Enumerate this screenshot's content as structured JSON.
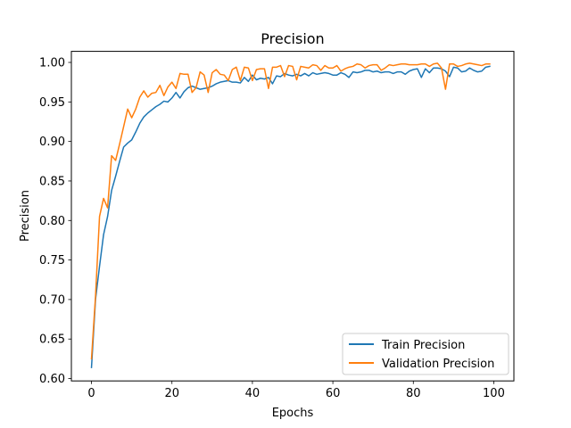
{
  "chart_data": {
    "type": "line",
    "title": "Precision",
    "xlabel": "Epochs",
    "ylabel": "Precision",
    "xlim": [
      -5,
      105
    ],
    "ylim": [
      0.597,
      1.014
    ],
    "xticks": [
      0,
      20,
      40,
      60,
      80,
      100
    ],
    "yticks": [
      0.6,
      0.65,
      0.7,
      0.75,
      0.8,
      0.85,
      0.9,
      0.95,
      1.0
    ],
    "grid": false,
    "legend": "lower-right",
    "x": [
      0,
      1,
      2,
      3,
      4,
      5,
      6,
      7,
      8,
      9,
      10,
      11,
      12,
      13,
      14,
      15,
      16,
      17,
      18,
      19,
      20,
      21,
      22,
      23,
      24,
      25,
      26,
      27,
      28,
      29,
      30,
      31,
      32,
      33,
      34,
      35,
      36,
      37,
      38,
      39,
      40,
      41,
      42,
      43,
      44,
      45,
      46,
      47,
      48,
      49,
      50,
      51,
      52,
      53,
      54,
      55,
      56,
      57,
      58,
      59,
      60,
      61,
      62,
      63,
      64,
      65,
      66,
      67,
      68,
      69,
      70,
      71,
      72,
      73,
      74,
      75,
      76,
      77,
      78,
      79,
      80,
      81,
      82,
      83,
      84,
      85,
      86,
      87,
      88,
      89,
      90,
      91,
      92,
      93,
      94,
      95,
      96,
      97,
      98,
      99
    ],
    "series": [
      {
        "name": "Train Precision",
        "color": "#1f77b4",
        "values": [
          0.614,
          0.7,
          0.742,
          0.782,
          0.805,
          0.838,
          0.856,
          0.875,
          0.893,
          0.898,
          0.902,
          0.912,
          0.923,
          0.931,
          0.936,
          0.94,
          0.944,
          0.947,
          0.951,
          0.95,
          0.955,
          0.962,
          0.955,
          0.963,
          0.968,
          0.97,
          0.968,
          0.966,
          0.967,
          0.968,
          0.97,
          0.973,
          0.975,
          0.976,
          0.977,
          0.975,
          0.975,
          0.974,
          0.981,
          0.976,
          0.984,
          0.978,
          0.98,
          0.979,
          0.981,
          0.973,
          0.983,
          0.982,
          0.986,
          0.984,
          0.983,
          0.985,
          0.983,
          0.986,
          0.983,
          0.987,
          0.985,
          0.986,
          0.987,
          0.986,
          0.984,
          0.984,
          0.987,
          0.985,
          0.981,
          0.988,
          0.987,
          0.988,
          0.99,
          0.99,
          0.988,
          0.989,
          0.987,
          0.988,
          0.988,
          0.986,
          0.988,
          0.988,
          0.985,
          0.989,
          0.991,
          0.992,
          0.981,
          0.992,
          0.987,
          0.993,
          0.993,
          0.992,
          0.989,
          0.982,
          0.994,
          0.993,
          0.988,
          0.989,
          0.993,
          0.99,
          0.988,
          0.989,
          0.994,
          0.995
        ]
      },
      {
        "name": "Validation Precision",
        "color": "#ff7f0e",
        "values": [
          0.625,
          0.704,
          0.805,
          0.828,
          0.816,
          0.882,
          0.876,
          0.897,
          0.919,
          0.941,
          0.93,
          0.941,
          0.956,
          0.964,
          0.956,
          0.961,
          0.962,
          0.971,
          0.958,
          0.969,
          0.975,
          0.967,
          0.986,
          0.985,
          0.985,
          0.962,
          0.968,
          0.988,
          0.984,
          0.962,
          0.987,
          0.991,
          0.985,
          0.984,
          0.977,
          0.991,
          0.994,
          0.977,
          0.994,
          0.993,
          0.977,
          0.991,
          0.992,
          0.992,
          0.967,
          0.994,
          0.994,
          0.996,
          0.982,
          0.996,
          0.995,
          0.978,
          0.995,
          0.994,
          0.993,
          0.997,
          0.996,
          0.99,
          0.996,
          0.993,
          0.993,
          0.996,
          0.989,
          0.992,
          0.994,
          0.995,
          0.998,
          0.997,
          0.993,
          0.996,
          0.997,
          0.997,
          0.99,
          0.993,
          0.997,
          0.996,
          0.997,
          0.998,
          0.998,
          0.997,
          0.997,
          0.997,
          0.998,
          0.998,
          0.995,
          0.998,
          0.999,
          0.993,
          0.966,
          0.998,
          0.998,
          0.995,
          0.996,
          0.998,
          0.999,
          0.998,
          0.997,
          0.996,
          0.998,
          0.998
        ]
      }
    ]
  }
}
